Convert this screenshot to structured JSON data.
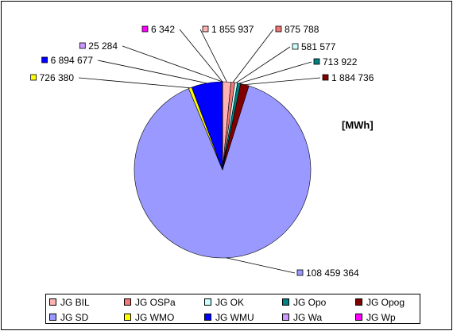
{
  "chart_data": {
    "type": "pie",
    "unit_label": "[MWh]",
    "slices": [
      {
        "name": "JG BIL",
        "value": 1855937,
        "label": "1 855 937",
        "color": "#FFB3B3"
      },
      {
        "name": "JG OSPa",
        "value": 875788,
        "label": "875 788",
        "color": "#F07878"
      },
      {
        "name": "JG OK",
        "value": 581577,
        "label": "581 577",
        "color": "#CCFFFF"
      },
      {
        "name": "JG Opo",
        "value": 713922,
        "label": "713 922",
        "color": "#008080"
      },
      {
        "name": "JG Opog",
        "value": 1884736,
        "label": "1 884 736",
        "color": "#800000"
      },
      {
        "name": "JG SD",
        "value": 108459364,
        "label": "108 459 364",
        "color": "#9999FF"
      },
      {
        "name": "JG WMO",
        "value": 726380,
        "label": "726 380",
        "color": "#FFFF00"
      },
      {
        "name": "JG WMU",
        "value": 6894677,
        "label": "6 894 677",
        "color": "#0000FF"
      },
      {
        "name": "JG Wa",
        "value": 25284,
        "label": "25 284",
        "color": "#CC99FF"
      },
      {
        "name": "JG Wp",
        "value": 6342,
        "label": "6 342",
        "color": "#FF00FF"
      }
    ],
    "legend_position": "bottom"
  }
}
